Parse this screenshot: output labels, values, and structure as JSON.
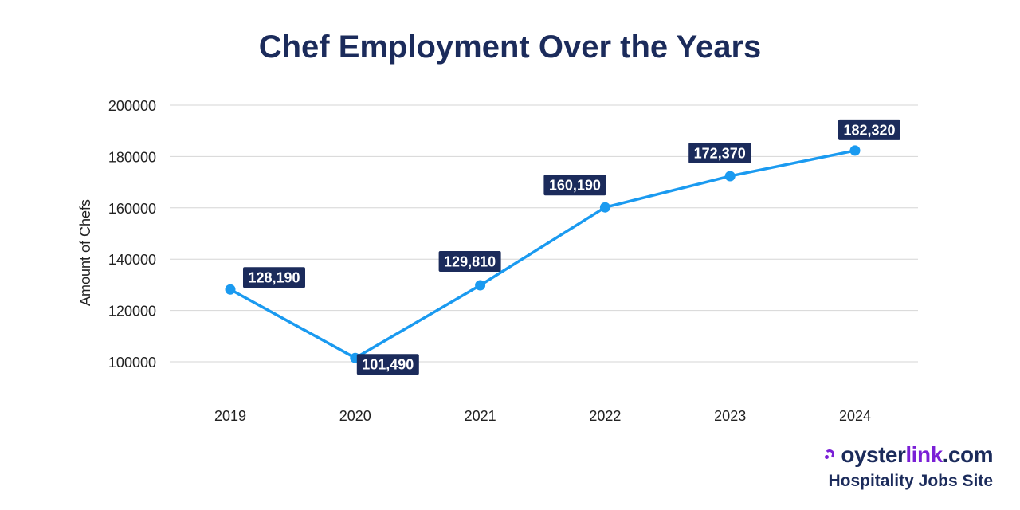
{
  "colors": {
    "title": "#1b2b5b",
    "line": "#1a9af0",
    "label_bg": "#1b2b5b",
    "label_text": "#ffffff",
    "grid": "#d6d6d6",
    "tick_text": "#222222",
    "brand_dark": "#1b2b5b",
    "brand_purple": "#7a1fd6"
  },
  "chart_data": {
    "type": "line",
    "title": "Chef Employment Over the Years",
    "xlabel": "",
    "ylabel": "Amount of Chefs",
    "categories": [
      "2019",
      "2020",
      "2021",
      "2022",
      "2023",
      "2024"
    ],
    "series": [
      {
        "values": [
          128190,
          101490,
          129810,
          160190,
          172370,
          182320
        ],
        "labels": [
          "128,190",
          "101,490",
          "129,810",
          "160,190",
          "172,370",
          "182,320"
        ]
      }
    ],
    "ylim": [
      100000,
      200000
    ],
    "yticks": [
      "100000",
      "120000",
      "140000",
      "160000",
      "180000",
      "200000"
    ],
    "ytick_values": [
      100000,
      120000,
      140000,
      160000,
      180000,
      200000
    ],
    "grid": true
  },
  "brand": {
    "name_dark_1": "oyster",
    "name_purple": "link",
    "name_dark_2": ".com",
    "tagline": "Hospitality Jobs Site",
    "icon": "oysterlink-logo-icon"
  }
}
